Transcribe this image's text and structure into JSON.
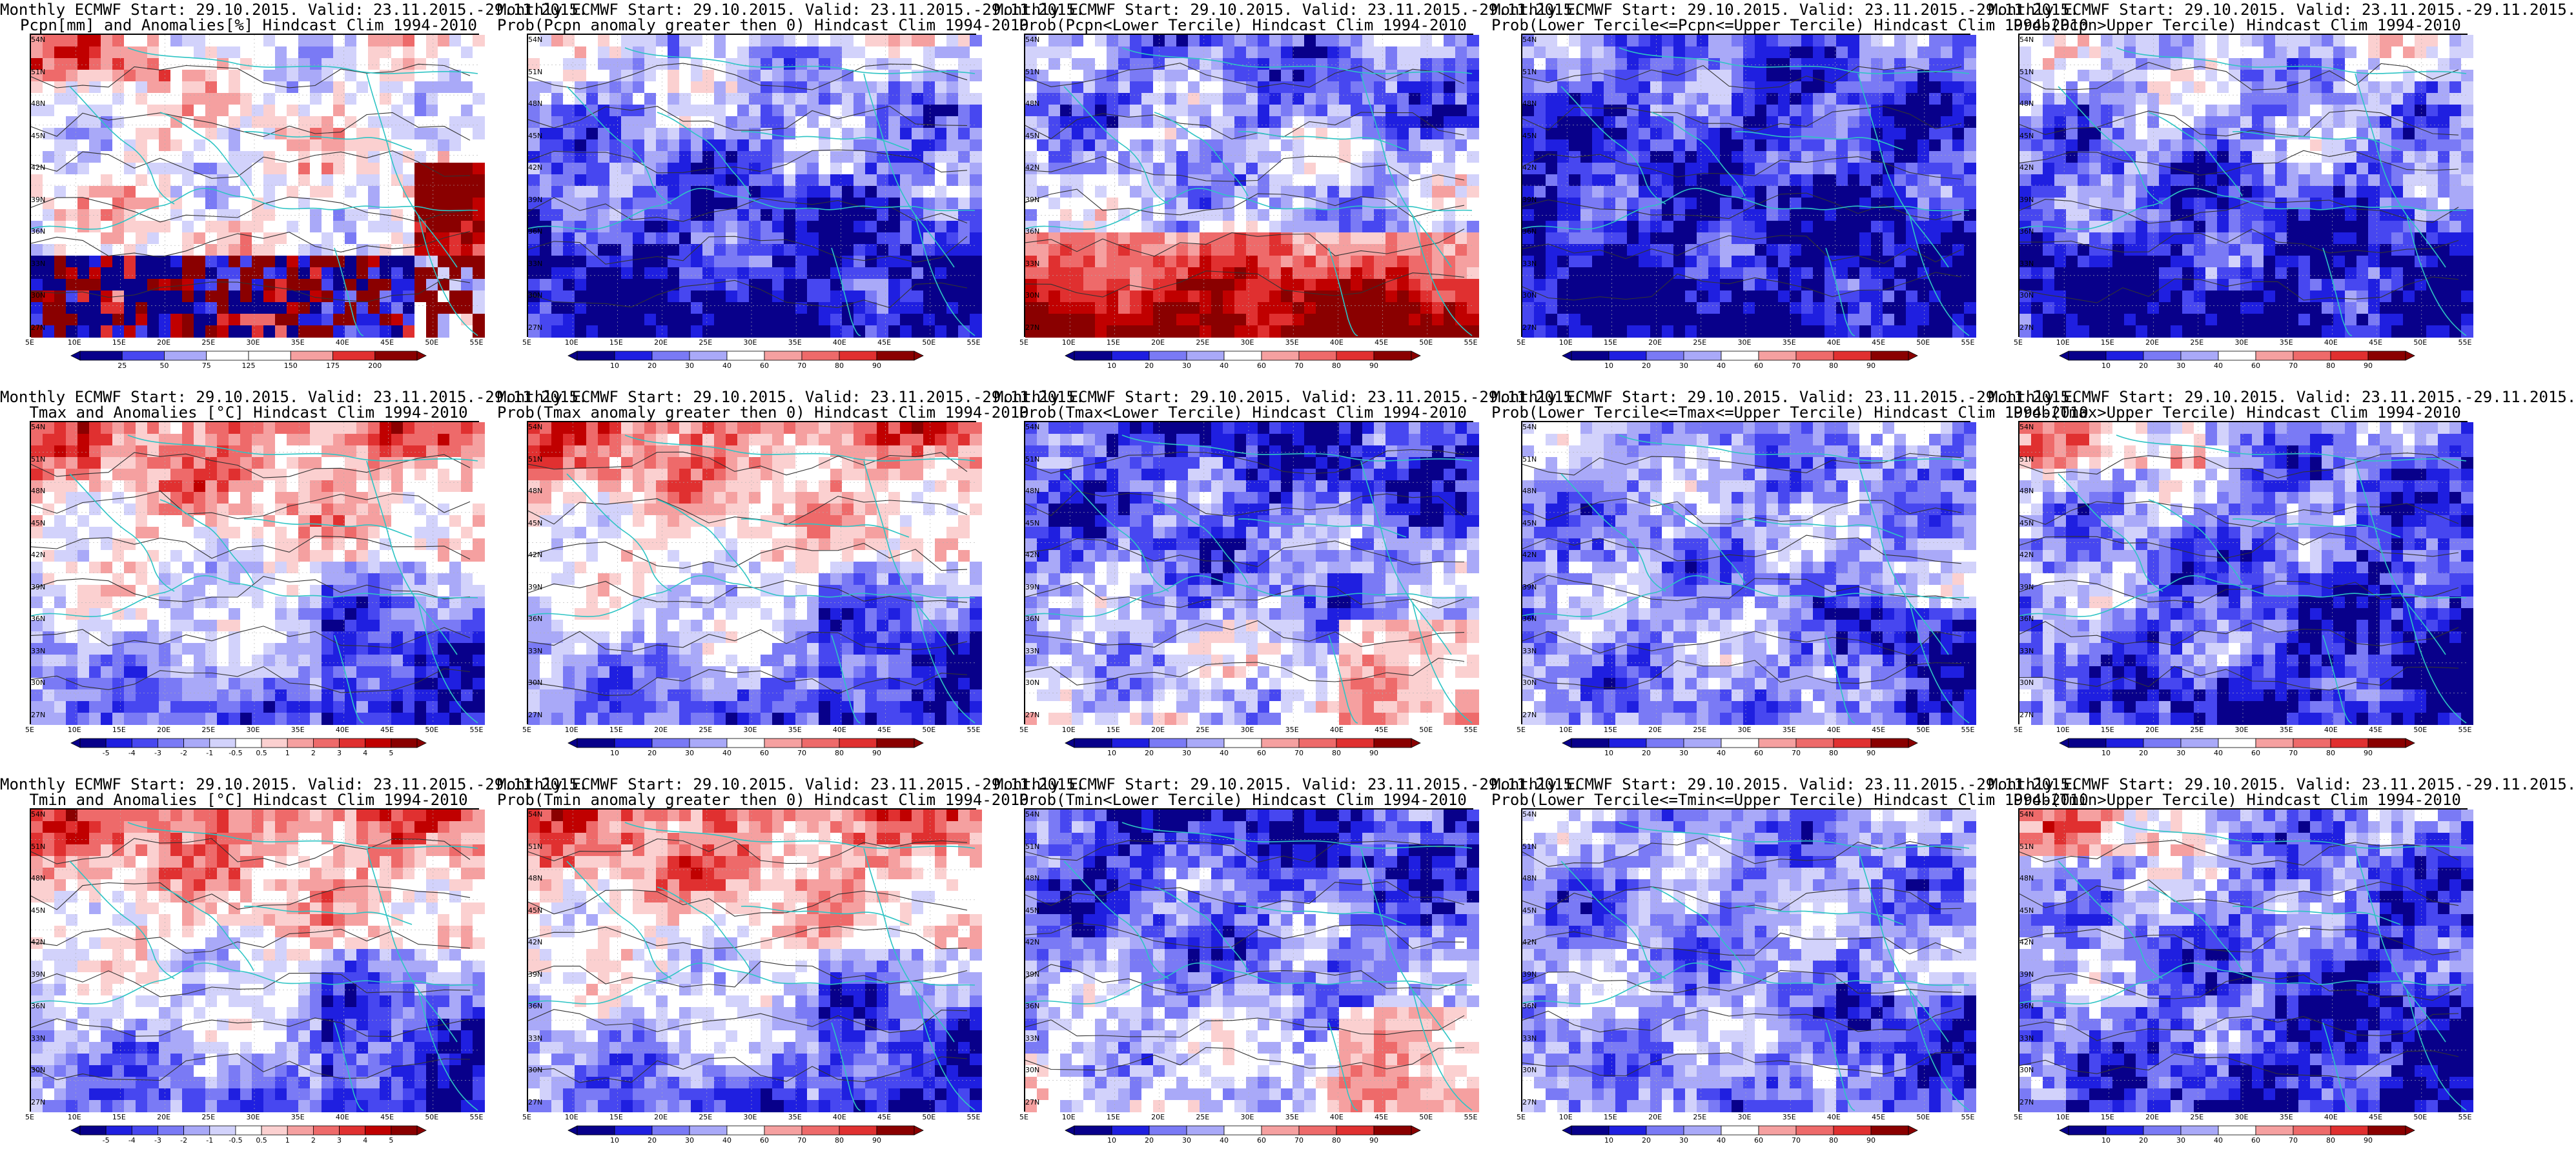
{
  "lon_ticks": [
    "5E",
    "10E",
    "15E",
    "20E",
    "25E",
    "30E",
    "35E",
    "40E",
    "45E",
    "50E",
    "55E"
  ],
  "lat_ticks": [
    "54N",
    "51N",
    "48N",
    "45N",
    "42N",
    "39N",
    "36N",
    "33N",
    "30N",
    "27N"
  ],
  "colors": {
    "coast": "#2ec4c4",
    "contour": "#333333",
    "blue_scale": [
      "#08008a",
      "#1f1fe0",
      "#4747f0",
      "#7a7af5",
      "#a9a9f8",
      "#d2d2fb"
    ],
    "red_scale": [
      "#fbd0d0",
      "#f5a0a0",
      "#ee6a6a",
      "#e03030",
      "#c00000",
      "#8a0000"
    ]
  },
  "colorbars": {
    "precip_anom": [
      "25",
      "50",
      "75",
      "125",
      "150",
      "175",
      "200"
    ],
    "temp_anom": [
      "-5",
      "-4",
      "-3",
      "-2",
      "-1",
      "-0.5",
      "0.5",
      "1",
      "2",
      "3",
      "4",
      "5"
    ],
    "prob": [
      "10",
      "20",
      "30",
      "40",
      "60",
      "70",
      "80",
      "90"
    ]
  },
  "panels": [
    {
      "title1": "Monthly ECMWF Start: 29.10.2015. Valid: 23.11.2015.-29.11.2015.",
      "title2": "Pcpn[mm] and Anomalies[%] Hindcast Clim 1994-2010",
      "scale": "precip_anom",
      "pattern": "precip_anom"
    },
    {
      "title1": "Monthly ECMWF Start: 29.10.2015. Valid: 23.11.2015.-29.11.2015.",
      "title2": "Prob(Pcpn anomaly greater then 0) Hindcast Clim 1994-2010",
      "scale": "prob",
      "pattern": "blue_south"
    },
    {
      "title1": "Monthly ECMWF Start: 29.10.2015. Valid: 23.11.2015.-29.11.2015.",
      "title2": "Prob(Pcpn<Lower Tercile) Hindcast Clim 1994-2010",
      "scale": "prob",
      "pattern": "red_south"
    },
    {
      "title1": "Monthly ECMWF Start: 29.10.2015. Valid: 23.11.2015.-29.11.2015.",
      "title2": "Prob(Lower Tercile<=Pcpn<=Upper Tercile) Hindcast Clim 1994-2010",
      "scale": "prob",
      "pattern": "deep_blue"
    },
    {
      "title1": "Monthly ECMWF Start: 29.10.2015. Valid: 23.11.2015.-29.11.2015.",
      "title2": "Prob(Pcpn>Upper Tercile) Hindcast Clim 1994-2010",
      "scale": "prob",
      "pattern": "blue_south"
    },
    {
      "title1": "Monthly ECMWF Start: 29.10.2015. Valid: 23.11.2015.-29.11.2015.",
      "title2": "Tmax and Anomalies [°C] Hindcast Clim 1994-2010",
      "scale": "temp_anom",
      "pattern": "warm_north"
    },
    {
      "title1": "Monthly ECMWF Start: 29.10.2015. Valid: 23.11.2015.-29.11.2015.",
      "title2": "Prob(Tmax anomaly greater then 0) Hindcast Clim 1994-2010",
      "scale": "prob",
      "pattern": "warm_north"
    },
    {
      "title1": "Monthly ECMWF Start: 29.10.2015. Valid: 23.11.2015.-29.11.2015.",
      "title2": "Prob(Tmax<Lower Tercile) Hindcast Clim 1994-2010",
      "scale": "prob",
      "pattern": "blue_north"
    },
    {
      "title1": "Monthly ECMWF Start: 29.10.2015. Valid: 23.11.2015.-29.11.2015.",
      "title2": "Prob(Lower Tercile<=Tmax<=Upper Tercile) Hindcast Clim 1994-2010",
      "scale": "prob",
      "pattern": "mid_blue"
    },
    {
      "title1": "Monthly ECMWF Start: 29.10.2015. Valid: 23.11.2015.-29.11.2015.",
      "title2": "Prob(Tmax>Upper Tercile) Hindcast Clim 1994-2010",
      "scale": "prob",
      "pattern": "blue_southeast"
    },
    {
      "title1": "Monthly ECMWF Start: 29.10.2015. Valid: 23.11.2015.-29.11.2015.",
      "title2": "Tmin and Anomalies [°C] Hindcast Clim 1994-2010",
      "scale": "temp_anom",
      "pattern": "warm_north"
    },
    {
      "title1": "Monthly ECMWF Start: 29.10.2015. Valid: 23.11.2015.-29.11.2015.",
      "title2": "Prob(Tmin anomaly greater then 0) Hindcast Clim 1994-2010",
      "scale": "prob",
      "pattern": "warm_north"
    },
    {
      "title1": "Monthly ECMWF Start: 29.10.2015. Valid: 23.11.2015.-29.11.2015.",
      "title2": "Prob(Tmin<Lower Tercile) Hindcast Clim 1994-2010",
      "scale": "prob",
      "pattern": "blue_north"
    },
    {
      "title1": "Monthly ECMWF Start: 29.10.2015. Valid: 23.11.2015.-29.11.2015.",
      "title2": "Prob(Lower Tercile<=Tmin<=Upper Tercile) Hindcast Clim 1994-2010",
      "scale": "prob",
      "pattern": "mid_blue"
    },
    {
      "title1": "Monthly ECMWF Start: 29.10.2015. Valid: 23.11.2015.-29.11.2015.",
      "title2": "Prob(Tmin>Upper Tercile) Hindcast Clim 1994-2010",
      "scale": "prob",
      "pattern": "blue_southeast"
    }
  ]
}
